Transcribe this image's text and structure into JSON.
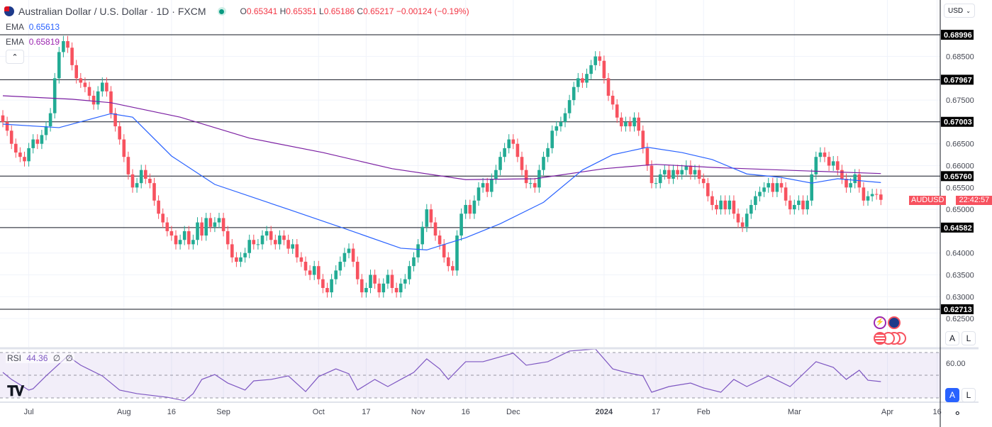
{
  "header": {
    "symbol_title": "Australian Dollar / U.S. Dollar · 1D · FXCM",
    "open_label": "O",
    "open": "0.65341",
    "high_label": "H",
    "high": "0.65351",
    "low_label": "L",
    "low": "0.65186",
    "close_label": "C",
    "close": "0.65217",
    "change": "−0.00124 (−0.19%)",
    "ema1_label": "EMA",
    "ema1_value": "0.65613",
    "ema2_label": "EMA",
    "ema2_value": "0.65819",
    "collapse_icon": "chevron-up-icon"
  },
  "currency_select": "USD",
  "price_tag": {
    "symbol": "AUDUSD",
    "countdown": "22:42:57"
  },
  "scale_buttons": {
    "auto": "A",
    "log": "L"
  },
  "rsi": {
    "label": "RSI",
    "value": "44.36",
    "extra1": "∅",
    "extra2": "∅",
    "tick_label": "60.00"
  },
  "colors": {
    "up": "#22ab94",
    "down": "#f7525f",
    "ema_fast": "#2962ff",
    "ema_slow": "#7b1fa2",
    "rsi": "#7e57c2",
    "level_line": "#131722"
  },
  "chart_data": {
    "type": "candlestick",
    "interval": "1D",
    "y_range": [
      0.6215,
      0.6925
    ],
    "grid": true,
    "closes": [
      0.67,
      0.668,
      0.665,
      0.663,
      0.662,
      0.661,
      0.664,
      0.666,
      0.665,
      0.667,
      0.669,
      0.672,
      0.68,
      0.686,
      0.6885,
      0.687,
      0.683,
      0.68,
      0.679,
      0.678,
      0.676,
      0.674,
      0.677,
      0.679,
      0.677,
      0.672,
      0.669,
      0.666,
      0.662,
      0.658,
      0.655,
      0.656,
      0.659,
      0.657,
      0.656,
      0.652,
      0.649,
      0.647,
      0.645,
      0.644,
      0.642,
      0.643,
      0.645,
      0.642,
      0.643,
      0.647,
      0.644,
      0.648,
      0.646,
      0.647,
      0.648,
      0.645,
      0.642,
      0.639,
      0.638,
      0.639,
      0.64,
      0.643,
      0.642,
      0.642,
      0.644,
      0.645,
      0.643,
      0.642,
      0.644,
      0.643,
      0.641,
      0.642,
      0.639,
      0.638,
      0.636,
      0.635,
      0.637,
      0.634,
      0.632,
      0.631,
      0.634,
      0.636,
      0.638,
      0.64,
      0.641,
      0.638,
      0.634,
      0.631,
      0.632,
      0.635,
      0.633,
      0.631,
      0.633,
      0.635,
      0.632,
      0.631,
      0.633,
      0.634,
      0.637,
      0.639,
      0.642,
      0.646,
      0.65,
      0.647,
      0.644,
      0.642,
      0.639,
      0.637,
      0.636,
      0.644,
      0.649,
      0.651,
      0.649,
      0.652,
      0.655,
      0.656,
      0.654,
      0.657,
      0.659,
      0.662,
      0.664,
      0.666,
      0.665,
      0.662,
      0.659,
      0.656,
      0.656,
      0.655,
      0.659,
      0.662,
      0.664,
      0.668,
      0.669,
      0.67,
      0.672,
      0.675,
      0.678,
      0.68,
      0.679,
      0.681,
      0.683,
      0.685,
      0.684,
      0.68,
      0.676,
      0.674,
      0.671,
      0.669,
      0.67,
      0.669,
      0.671,
      0.668,
      0.664,
      0.66,
      0.656,
      0.656,
      0.658,
      0.659,
      0.657,
      0.659,
      0.658,
      0.659,
      0.66,
      0.658,
      0.659,
      0.657,
      0.656,
      0.653,
      0.651,
      0.65,
      0.652,
      0.65,
      0.652,
      0.649,
      0.647,
      0.646,
      0.649,
      0.651,
      0.653,
      0.654,
      0.655,
      0.656,
      0.654,
      0.656,
      0.655,
      0.652,
      0.65,
      0.651,
      0.652,
      0.65,
      0.652,
      0.658,
      0.662,
      0.663,
      0.662,
      0.66,
      0.661,
      0.659,
      0.657,
      0.655,
      0.656,
      0.658,
      0.655,
      0.652,
      0.653,
      0.6535,
      0.6534,
      0.65217
    ],
    "ema_fast": {
      "index": [
        0,
        13,
        25,
        30,
        39,
        49,
        66,
        79,
        92,
        98,
        107,
        115,
        125,
        134,
        141,
        149,
        157,
        164,
        172,
        180,
        187,
        193,
        203
      ],
      "values": [
        0.6695,
        0.6687,
        0.6719,
        0.6711,
        0.6622,
        0.6557,
        0.65,
        0.6456,
        0.6411,
        0.6407,
        0.6435,
        0.6467,
        0.6516,
        0.659,
        0.6625,
        0.6642,
        0.663,
        0.6614,
        0.6581,
        0.6573,
        0.656,
        0.657,
        0.65613
      ]
    },
    "ema_slow": {
      "index": [
        0,
        16,
        25,
        41,
        57,
        74,
        90,
        107,
        123,
        139,
        151,
        164,
        180,
        203
      ],
      "values": [
        0.676,
        0.6752,
        0.6744,
        0.6711,
        0.6663,
        0.663,
        0.6593,
        0.6568,
        0.657,
        0.6593,
        0.6603,
        0.6596,
        0.659,
        0.65819
      ]
    },
    "levels": [
      "0.68996",
      "0.67967",
      "0.67003",
      "0.65760",
      "0.64582",
      "0.62713"
    ],
    "y_ticks": [
      "0.68500",
      "0.67500",
      "0.66500",
      "0.66000",
      "0.65500",
      "0.65000",
      "0.64000",
      "0.63500",
      "0.63000",
      "0.62500"
    ],
    "x_ticks": [
      {
        "label": "Jul",
        "index": 6
      },
      {
        "label": "Aug",
        "index": 28
      },
      {
        "label": "16",
        "index": 39
      },
      {
        "label": "Sep",
        "index": 51
      },
      {
        "label": "Oct",
        "index": 73
      },
      {
        "label": "17",
        "index": 84
      },
      {
        "label": "Nov",
        "index": 96
      },
      {
        "label": "16",
        "index": 107
      },
      {
        "label": "Dec",
        "index": 118
      },
      {
        "label": "2024",
        "index": 139
      },
      {
        "label": "17",
        "index": 151
      },
      {
        "label": "Feb",
        "index": 162
      },
      {
        "label": "Mar",
        "index": 183
      },
      {
        "label": "Apr",
        "index": 204.5
      },
      {
        "label": "16",
        "index": 216
      }
    ],
    "rsi_series": {
      "index": [
        0,
        2,
        6,
        7,
        10,
        15,
        18,
        23,
        27,
        31,
        38,
        42,
        44,
        46,
        49,
        52,
        56,
        58,
        62,
        66,
        70,
        73,
        77,
        80,
        82,
        86,
        89,
        92,
        95,
        98,
        101,
        103,
        107,
        111,
        118,
        121,
        126,
        131,
        137,
        141,
        144,
        148,
        150,
        154,
        159,
        162,
        166,
        169,
        172,
        177,
        182,
        188,
        192,
        195,
        198,
        200,
        203
      ],
      "values": [
        52.5,
        46.3,
        36.9,
        38.1,
        49.4,
        66.9,
        58.8,
        49.4,
        36.9,
        33.8,
        30.6,
        27.5,
        33.8,
        46.3,
        50.6,
        43.1,
        36.9,
        45,
        46.3,
        49.4,
        35.6,
        48.8,
        55.6,
        51.3,
        36.9,
        46.3,
        40,
        46.3,
        52.5,
        64.4,
        55.6,
        46.3,
        61.9,
        61.9,
        69.4,
        58.8,
        61.9,
        71.3,
        73.1,
        55.6,
        52.5,
        49.4,
        35,
        40,
        43.1,
        38.8,
        35,
        46.3,
        40,
        49.4,
        40,
        61.9,
        56.9,
        46.3,
        54.4,
        45.6,
        44.36
      ],
      "bands": [
        70,
        50,
        30
      ]
    }
  }
}
